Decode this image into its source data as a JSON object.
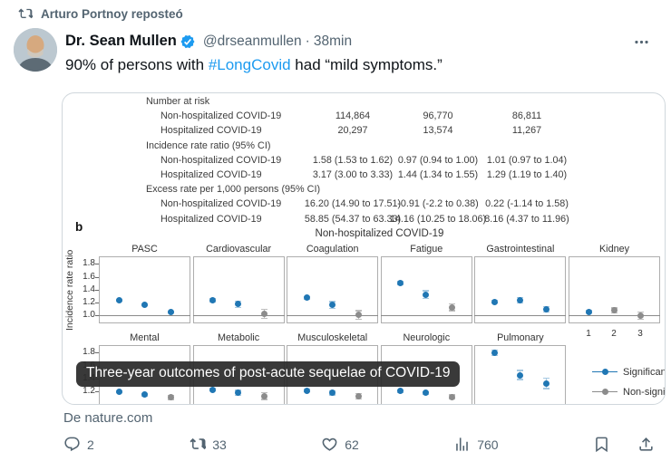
{
  "repost_banner": {
    "text": "Arturo Portnoy reposteó"
  },
  "user": {
    "name": "Dr. Sean Mullen",
    "handle": "@drseanmullen",
    "separator": "·",
    "time": "38min"
  },
  "tweet": {
    "text_before": "90% of persons with ",
    "hashtag": "#LongCovid",
    "text_after": " had “mild symptoms.”"
  },
  "figure": {
    "table": {
      "rows": [
        {
          "label": "Number at risk",
          "indent": 0,
          "values": [
            "",
            "",
            ""
          ]
        },
        {
          "label": "Non-hospitalized COVID-19",
          "indent": 1,
          "values": [
            "114,864",
            "96,770",
            "86,811"
          ]
        },
        {
          "label": "Hospitalized COVID-19",
          "indent": 1,
          "values": [
            "20,297",
            "13,574",
            "11,267"
          ]
        },
        {
          "label": "Incidence rate ratio (95% CI)",
          "indent": 0,
          "values": [
            "",
            "",
            ""
          ]
        },
        {
          "label": "Non-hospitalized COVID-19",
          "indent": 1,
          "values": [
            "1.58 (1.53 to 1.62)",
            "0.97 (0.94 to 1.00)",
            "1.01 (0.97 to 1.04)"
          ]
        },
        {
          "label": "Hospitalized COVID-19",
          "indent": 1,
          "values": [
            "3.17 (3.00 to 3.33)",
            "1.44 (1.34 to 1.55)",
            "1.29 (1.19 to 1.40)"
          ]
        },
        {
          "label": "Excess rate per 1,000 persons (95% CI)",
          "indent": 0,
          "values": [
            "",
            "",
            ""
          ]
        },
        {
          "label": "Non-hospitalized COVID-19",
          "indent": 1,
          "values": [
            "16.20 (14.90 to 17.51)",
            "-0.91 (-2.2 to 0.38)",
            "0.22 (-1.14 to 1.58)"
          ]
        },
        {
          "label": "Hospitalized COVID-19",
          "indent": 1,
          "values": [
            "58.85 (54.37 to 63.33)",
            "14.16 (10.25 to 18.06)",
            "8.16 (4.37 to 11.96)"
          ]
        }
      ]
    }
  },
  "chart_data": {
    "type": "scatter",
    "panel_label": "b",
    "title": "Non-hospitalized COVID-19",
    "ylabel": "Incidence rate ratio",
    "x": [
      1,
      2,
      3
    ],
    "x_tick_labels": [
      "1",
      "2",
      "3"
    ],
    "yticks_row1": [
      1.8,
      1.6,
      1.4,
      1.2,
      1.0
    ],
    "yticks_row2": [
      1.8,
      1.6,
      1.4,
      1.2
    ],
    "ylim": [
      0.87,
      1.92
    ],
    "ref_line": 1.0,
    "legend": [
      {
        "label": "Significant",
        "type": "significant"
      },
      {
        "label": "Non-significant",
        "type": "non_significant"
      }
    ],
    "rows": [
      {
        "panels": [
          {
            "name": "PASC",
            "points": [
              {
                "y": 1.23,
                "sig": true,
                "err": 0.02
              },
              {
                "y": 1.16,
                "sig": true,
                "err": 0.02
              },
              {
                "y": 1.05,
                "sig": true,
                "err": 0.02
              }
            ]
          },
          {
            "name": "Cardiovascular",
            "points": [
              {
                "y": 1.23,
                "sig": true,
                "err": 0.04
              },
              {
                "y": 1.17,
                "sig": true,
                "err": 0.06
              },
              {
                "y": 1.02,
                "sig": false,
                "err": 0.08
              }
            ]
          },
          {
            "name": "Coagulation",
            "points": [
              {
                "y": 1.27,
                "sig": true,
                "err": 0.03
              },
              {
                "y": 1.16,
                "sig": true,
                "err": 0.06
              },
              {
                "y": 1.0,
                "sig": false,
                "err": 0.08
              }
            ]
          },
          {
            "name": "Fatigue",
            "points": [
              {
                "y": 1.5,
                "sig": true,
                "err": 0.04
              },
              {
                "y": 1.32,
                "sig": true,
                "err": 0.07
              },
              {
                "y": 1.12,
                "sig": false,
                "err": 0.06
              }
            ]
          },
          {
            "name": "Gastrointestinal",
            "points": [
              {
                "y": 1.21,
                "sig": true,
                "err": 0.03
              },
              {
                "y": 1.23,
                "sig": true,
                "err": 0.05
              },
              {
                "y": 1.09,
                "sig": true,
                "err": 0.05
              }
            ]
          },
          {
            "name": "Kidney",
            "points": [
              {
                "y": 1.05,
                "sig": true,
                "err": 0.03
              },
              {
                "y": 1.07,
                "sig": false,
                "err": 0.05
              },
              {
                "y": 0.99,
                "sig": false,
                "err": 0.07
              }
            ]
          }
        ]
      },
      {
        "panels": [
          {
            "name": "Mental",
            "points": [
              {
                "y": 1.19,
                "sig": true,
                "err": 0.02
              },
              {
                "y": 1.14,
                "sig": true,
                "err": 0.03
              },
              {
                "y": 1.1,
                "sig": false,
                "err": 0.04
              }
            ]
          },
          {
            "name": "Metabolic",
            "points": [
              {
                "y": 1.22,
                "sig": true,
                "err": 0.03
              },
              {
                "y": 1.17,
                "sig": true,
                "err": 0.05
              },
              {
                "y": 1.12,
                "sig": false,
                "err": 0.06
              }
            ]
          },
          {
            "name": "Musculoskeletal",
            "points": [
              {
                "y": 1.21,
                "sig": true,
                "err": 0.03
              },
              {
                "y": 1.17,
                "sig": true,
                "err": 0.04
              },
              {
                "y": 1.12,
                "sig": false,
                "err": 0.05
              }
            ]
          },
          {
            "name": "Neurologic",
            "points": [
              {
                "y": 1.2,
                "sig": true,
                "err": 0.03
              },
              {
                "y": 1.17,
                "sig": true,
                "err": 0.03
              },
              {
                "y": 1.11,
                "sig": false,
                "err": 0.04
              }
            ]
          },
          {
            "name": "Pulmonary",
            "points": [
              {
                "y": 1.8,
                "sig": true,
                "err": 0.05
              },
              {
                "y": 1.45,
                "sig": true,
                "err": 0.08
              },
              {
                "y": 1.32,
                "sig": true,
                "err": 0.09
              }
            ]
          }
        ]
      }
    ]
  },
  "overlay_caption": "Three-year outcomes of post-acute sequelae of COVID-19",
  "source": "De nature.com",
  "actions": {
    "reply": "2",
    "repost": "33",
    "like": "62",
    "views": "760"
  },
  "colors": {
    "accent_blue": "#1d9bf0",
    "text_primary": "#0f1419",
    "text_secondary": "#536471",
    "sig_point": "#2077b4",
    "sig_err": "#a6c9e2",
    "nonsig_point": "#8c8c8c",
    "nonsig_err": "#bdbdbd",
    "panel_border": "#aeaeae",
    "ref_line": "#8a8a8a",
    "overlay_bg": "#2a2a2a"
  }
}
